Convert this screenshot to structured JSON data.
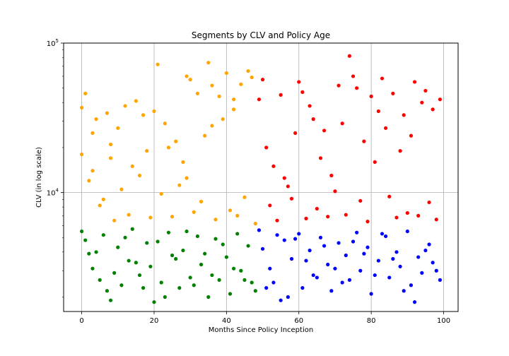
{
  "chart_data": {
    "type": "scatter",
    "title": "Segments by CLV and Policy Age",
    "xlabel": "Months Since Policy Inception",
    "ylabel": "CLV (in log scale)",
    "xlim": [
      -5,
      104
    ],
    "ylim": [
      1600,
      100000
    ],
    "y_scale": "log",
    "grid": true,
    "x_ticks": [
      {
        "value": 0,
        "label": "0"
      },
      {
        "value": 20,
        "label": "20"
      },
      {
        "value": 40,
        "label": "40"
      },
      {
        "value": 60,
        "label": "60"
      },
      {
        "value": 80,
        "label": "80"
      },
      {
        "value": 100,
        "label": "100"
      }
    ],
    "y_ticks": [
      {
        "value": 10000,
        "base": "10",
        "exp": "4"
      },
      {
        "value": 100000,
        "base": "10",
        "exp": "5"
      }
    ],
    "colors": {
      "orange": "#ffa500",
      "red": "#ff0000",
      "green": "#008000",
      "blue": "#0000ff"
    },
    "series": [
      {
        "color": "#ffa500",
        "x": [
          0,
          0,
          1,
          2,
          3,
          4,
          6,
          7,
          8,
          10,
          12,
          14,
          15,
          17,
          18,
          20,
          21,
          23,
          26,
          28,
          29,
          30,
          32,
          34,
          35,
          36,
          38,
          39,
          40,
          42,
          44,
          46,
          47,
          5,
          11,
          16,
          22,
          27,
          33,
          41,
          45,
          9,
          13,
          19,
          25,
          31,
          37,
          43,
          48,
          3,
          8,
          24,
          29,
          36,
          42
        ],
        "y": [
          37000,
          18000,
          46000,
          12000,
          25000,
          31000,
          9000,
          34000,
          21000,
          27000,
          38000,
          15000,
          41000,
          33000,
          19000,
          35000,
          72000,
          29000,
          22000,
          16000,
          60000,
          57000,
          46000,
          24000,
          74000,
          52000,
          44000,
          31000,
          63000,
          42000,
          53000,
          65000,
          59000,
          8200,
          10500,
          13000,
          9800,
          11200,
          8700,
          7600,
          9300,
          6500,
          7100,
          6800,
          6900,
          7400,
          6600,
          7000,
          6200,
          14000,
          17000,
          20000,
          12500,
          28000,
          36000
        ]
      },
      {
        "color": "#ff0000",
        "x": [
          49,
          50,
          51,
          53,
          55,
          57,
          59,
          60,
          61,
          63,
          64,
          66,
          67,
          69,
          71,
          72,
          74,
          75,
          76,
          78,
          80,
          82,
          83,
          84,
          86,
          88,
          89,
          91,
          92,
          94,
          95,
          97,
          99,
          52,
          58,
          65,
          70,
          77,
          85,
          90,
          96,
          54,
          62,
          68,
          73,
          79,
          87,
          93,
          98,
          56,
          81
        ],
        "y": [
          42000,
          57000,
          20000,
          15000,
          45000,
          11000,
          25000,
          55000,
          47000,
          38000,
          31000,
          17000,
          26000,
          13000,
          52000,
          29000,
          82000,
          60000,
          50000,
          22000,
          44000,
          35000,
          58000,
          27000,
          46000,
          19000,
          33000,
          24000,
          55000,
          40000,
          48000,
          36000,
          42000,
          8200,
          9100,
          7800,
          10200,
          8800,
          9400,
          7300,
          8600,
          6500,
          6700,
          6900,
          7100,
          6400,
          6800,
          7000,
          6600,
          12500,
          16000
        ]
      },
      {
        "color": "#008000",
        "x": [
          0,
          1,
          2,
          3,
          5,
          6,
          7,
          8,
          10,
          11,
          13,
          14,
          16,
          18,
          19,
          20,
          22,
          24,
          25,
          27,
          28,
          30,
          32,
          33,
          35,
          37,
          38,
          40,
          41,
          43,
          44,
          46,
          47,
          4,
          9,
          12,
          15,
          17,
          21,
          23,
          26,
          29,
          31,
          34,
          36,
          39,
          42,
          45,
          48
        ],
        "y": [
          5500,
          4800,
          3900,
          3100,
          2600,
          5200,
          2200,
          1900,
          4300,
          2400,
          3500,
          5700,
          2800,
          4600,
          3200,
          1850,
          2500,
          5400,
          3800,
          2300,
          4100,
          2700,
          5100,
          3300,
          2000,
          4900,
          2600,
          3700,
          2100,
          5300,
          3000,
          4400,
          2500,
          4000,
          2900,
          5000,
          3400,
          2300,
          4700,
          2000,
          3600,
          5500,
          2400,
          3900,
          2800,
          4500,
          3100,
          2600,
          2200
        ]
      },
      {
        "color": "#0000ff",
        "x": [
          49,
          50,
          52,
          53,
          55,
          56,
          58,
          60,
          61,
          63,
          64,
          66,
          68,
          69,
          71,
          73,
          74,
          76,
          77,
          79,
          80,
          82,
          84,
          85,
          87,
          88,
          90,
          91,
          93,
          94,
          96,
          97,
          99,
          51,
          54,
          57,
          59,
          62,
          65,
          67,
          70,
          72,
          75,
          78,
          81,
          83,
          86,
          89,
          92,
          95,
          98
        ],
        "y": [
          5600,
          4200,
          3100,
          2500,
          1900,
          4800,
          3600,
          5300,
          2300,
          4100,
          2800,
          5000,
          3300,
          2200,
          4600,
          3800,
          2600,
          5400,
          3000,
          4300,
          2100,
          3500,
          5100,
          2700,
          4000,
          3200,
          5500,
          2400,
          3700,
          2900,
          4500,
          3400,
          2600,
          2300,
          5200,
          2000,
          4900,
          3500,
          2700,
          4400,
          3100,
          2500,
          4700,
          3900,
          2800,
          5300,
          3600,
          2200,
          1850,
          4100,
          3000
        ]
      }
    ]
  }
}
